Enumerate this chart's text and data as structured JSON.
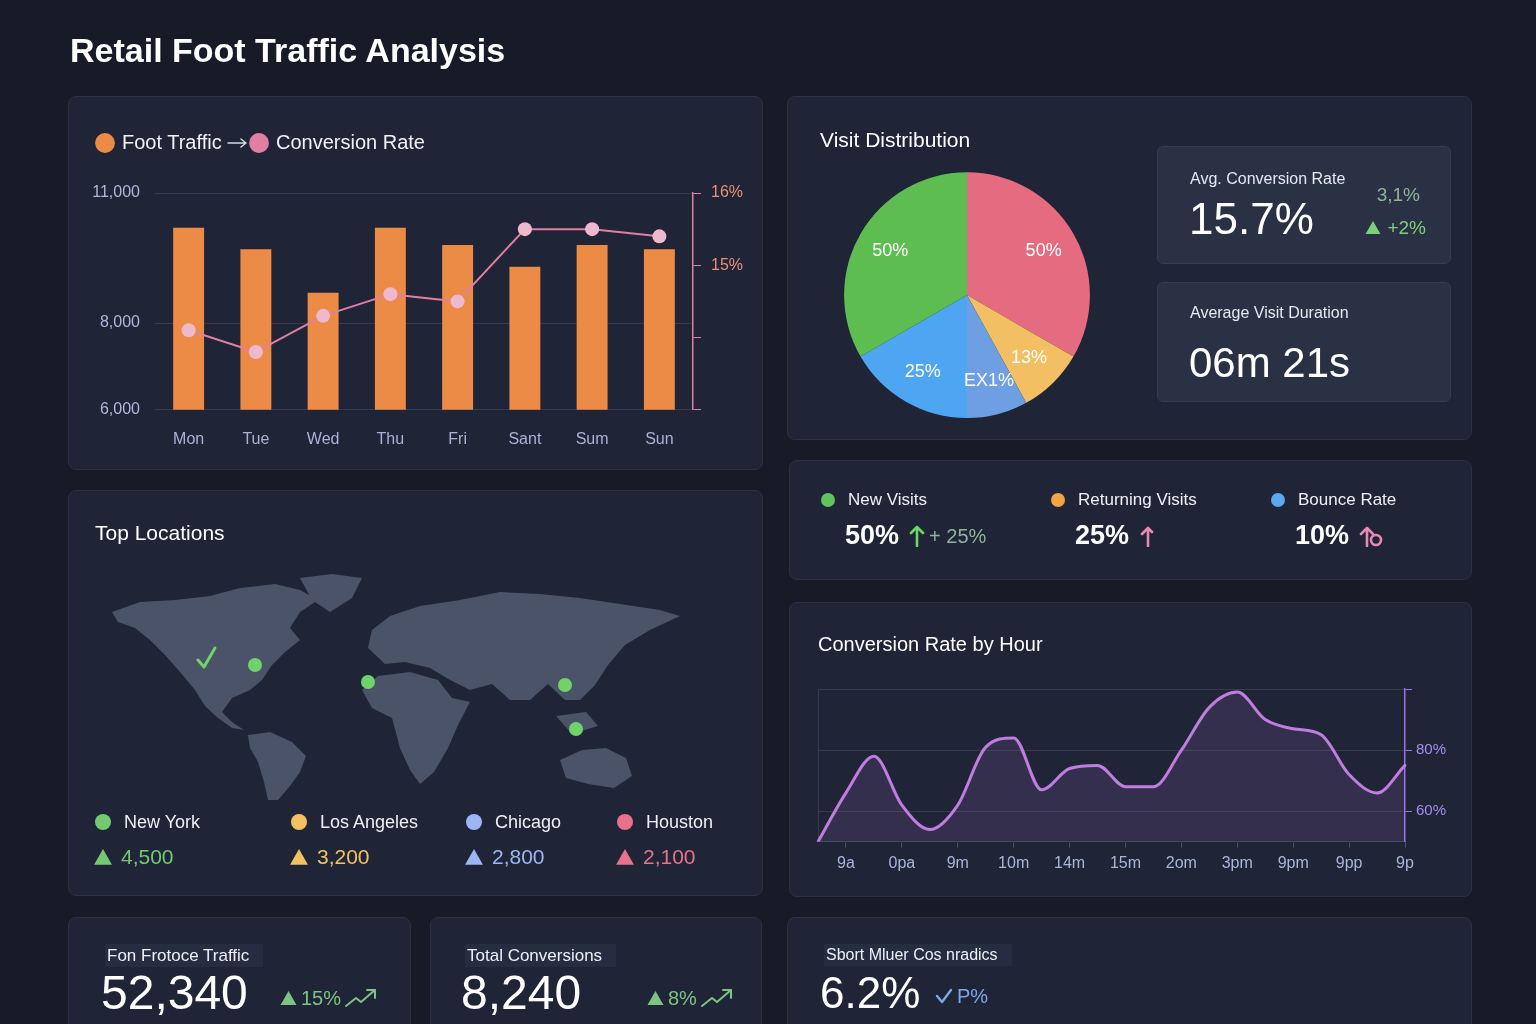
{
  "chart_data": [
    {
      "type": "other",
      "title": "Retail Foot Traffic Analysis"
    },
    {
      "type": "bar",
      "categories": [
        "Mon",
        "Tue",
        "Wed",
        "Thu",
        "Fri",
        "Sant",
        "Sum",
        "Sun"
      ],
      "series": [
        {
          "name": "Foot Traffic",
          "color": "#ec8b45",
          "values": [
            10200,
            9700,
            8700,
            10200,
            9800,
            9300,
            9800,
            9700
          ]
        },
        {
          "name": "Conversion Rate",
          "type": "line",
          "axis": "y2",
          "color": "#e07fa3",
          "values": [
            14.1,
            13.8,
            14.3,
            14.6,
            14.5,
            15.5,
            15.5,
            15.4
          ]
        }
      ],
      "ylim": [
        6000,
        11000
      ],
      "yticks": [
        {
          "value": 6000,
          "label": "6,000"
        },
        {
          "value": 8000,
          "label": "8,000"
        },
        {
          "value": 11000,
          "label": "11,000"
        }
      ],
      "y2lim": [
        13,
        16
      ],
      "y2ticks": [
        {
          "value": 13,
          "label": null
        },
        {
          "value": 14,
          "label": null
        },
        {
          "value": 15,
          "label": "15%"
        },
        {
          "value": 16,
          "label": "16%"
        }
      ],
      "grid": "y",
      "legend": "top left",
      "marker": "circle"
    },
    {
      "type": "pie",
      "title": "Visit Distribution",
      "categories": [
        null,
        null,
        null,
        null,
        null
      ],
      "values": [
        50,
        13,
        12,
        25,
        50
      ],
      "colors": [
        "#e56c80",
        "#f2c063",
        "#6f9fe3",
        "#4ea5f2",
        "#5ebd50"
      ],
      "value_labels": [
        "50%",
        "13%",
        "EX1%",
        "25%",
        "50%"
      ]
    },
    {
      "type": "other",
      "title": "Avg. Conversion Rate",
      "annotations": [
        "15.7%",
        "3,1%",
        "+2%"
      ]
    },
    {
      "type": "other",
      "title": "Average Visit Duration",
      "annotations": [
        "06m 21s"
      ]
    },
    {
      "type": "other",
      "title": "New Visits",
      "color": "#62c25c",
      "annotations": [
        "50%",
        "+ 25%"
      ]
    },
    {
      "type": "other",
      "title": "Returning Visits",
      "color": "#f2a344",
      "annotations": [
        "25%"
      ]
    },
    {
      "type": "other",
      "title": "Bounce Rate",
      "color": "#5aa8f0",
      "annotations": [
        "10%"
      ]
    },
    {
      "type": "other",
      "title": "Top Locations",
      "categories": [
        "New York",
        "Los Angeles",
        "Chicago",
        "Houston"
      ],
      "colors": [
        "#74c872",
        "#f4c064",
        "#9db5f3",
        "#e8728c"
      ],
      "annotations": [
        "4,500",
        "3,200",
        "2,800",
        "2,100"
      ]
    },
    {
      "type": "area",
      "title": "Conversion Rate by Hour",
      "categories": [
        null,
        "9a",
        null,
        "0pa",
        null,
        "9m",
        null,
        "10m",
        null,
        "14m",
        null,
        "15m",
        null,
        "2om",
        null,
        "3pm",
        null,
        "9pm",
        null,
        "9pp",
        null,
        "9p"
      ],
      "series": [
        {
          "color": "#c07de0",
          "values": [
            50,
            66,
            78,
            62,
            54,
            62,
            81,
            84,
            67,
            74,
            75,
            68,
            68,
            80,
            94,
            99,
            90,
            87,
            85,
            72,
            66,
            75
          ]
        }
      ],
      "ylim": [
        50,
        100
      ],
      "yticks": [
        {
          "value": 60,
          "label": "60%"
        },
        {
          "value": 80,
          "label": "80%"
        },
        {
          "value": 100,
          "label": null
        }
      ],
      "grid": "y"
    },
    {
      "type": "other",
      "title": "Fon Frotoce Traffic",
      "annotations": [
        "52,340",
        "15%"
      ]
    },
    {
      "type": "other",
      "title": "Total Conversions",
      "annotations": [
        "8,240",
        "8%"
      ]
    },
    {
      "type": "other",
      "title": "Sbort Mluer Cos nradics",
      "annotations": [
        "6.2%",
        "P%"
      ]
    }
  ]
}
